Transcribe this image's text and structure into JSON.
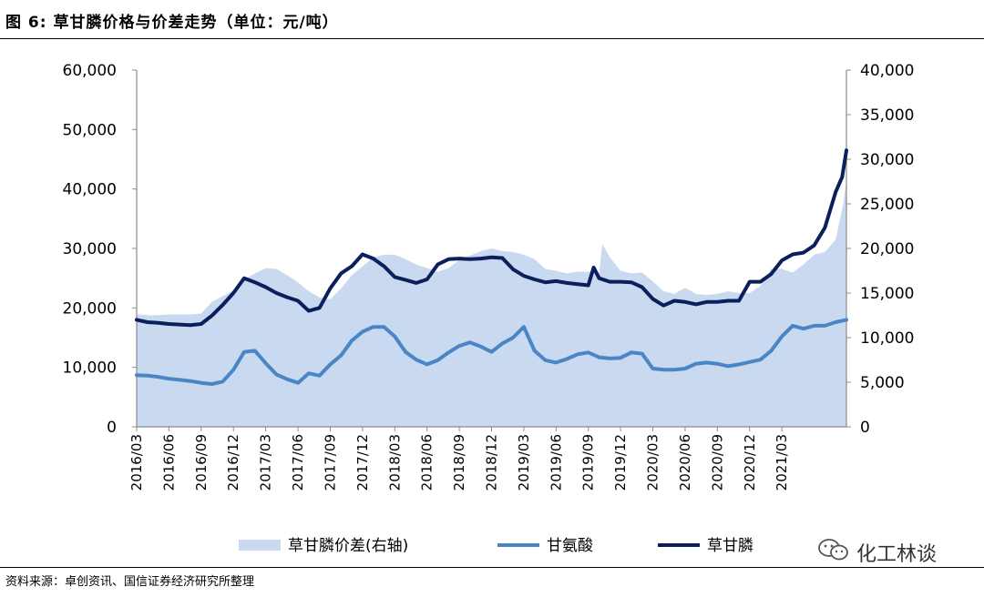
{
  "figure": {
    "title": "图 6:  草甘膦价格与价差走势（单位：元/吨）",
    "source": "资料来源：卓创资讯、国信证券经济研究所整理",
    "watermark": "化工林谈",
    "watermark_icon": "wechat-icon"
  },
  "colors": {
    "spread": "#c9d9f0",
    "glycine": "#4a86c6",
    "glyphosate": "#0a1f5c",
    "axis": "#8c8c8c"
  },
  "chart_data": {
    "type": "line",
    "title": "草甘膦价格与价差走势（单位：元/吨）",
    "xlabel": "",
    "ylabel": "",
    "ylim_left": [
      0,
      60000
    ],
    "ylim_right": [
      0,
      40000
    ],
    "left_ticks": [
      "0",
      "10,000",
      "20,000",
      "30,000",
      "40,000",
      "50,000",
      "60,000"
    ],
    "right_ticks": [
      "0",
      "5,000",
      "10,000",
      "15,000",
      "20,000",
      "25,000",
      "30,000",
      "35,000",
      "40,000"
    ],
    "x_ticks": [
      "2016/03",
      "2016/06",
      "2016/09",
      "2016/12",
      "2017/03",
      "2017/06",
      "2017/09",
      "2017/12",
      "2018/03",
      "2018/06",
      "2018/09",
      "2018/12",
      "2019/03",
      "2019/06",
      "2019/09",
      "2019/12",
      "2020/03",
      "2020/06",
      "2020/09",
      "2020/12",
      "2021/03"
    ],
    "x_range_months": [
      0,
      66
    ],
    "legend": [
      "草甘膦价差(右轴)",
      "甘氨酸",
      "草甘膦"
    ],
    "legend_position": "bottom",
    "series": [
      {
        "name": "草甘膦价差(右轴)",
        "axis": "right",
        "kind": "area",
        "points": [
          [
            0,
            12600
          ],
          [
            1.5,
            12500
          ],
          [
            3,
            12600
          ],
          [
            5,
            12600
          ],
          [
            6,
            12700
          ],
          [
            7,
            14000
          ],
          [
            9,
            15300
          ],
          [
            10,
            16500
          ],
          [
            11,
            17200
          ],
          [
            12,
            17800
          ],
          [
            13,
            17700
          ],
          [
            14,
            17000
          ],
          [
            15,
            16200
          ],
          [
            16,
            15200
          ],
          [
            17,
            14500
          ],
          [
            18,
            14300
          ],
          [
            19,
            15500
          ],
          [
            20,
            17000
          ],
          [
            21,
            18000
          ],
          [
            22,
            19000
          ],
          [
            23,
            19300
          ],
          [
            24,
            19300
          ],
          [
            25,
            18800
          ],
          [
            26,
            18200
          ],
          [
            27,
            17800
          ],
          [
            28,
            17400
          ],
          [
            29,
            17800
          ],
          [
            30,
            18700
          ],
          [
            31,
            19200
          ],
          [
            32,
            19700
          ],
          [
            33,
            20000
          ],
          [
            34,
            19700
          ],
          [
            35,
            19600
          ],
          [
            36,
            19300
          ],
          [
            37,
            18800
          ],
          [
            38,
            17700
          ],
          [
            39,
            17500
          ],
          [
            40,
            17200
          ],
          [
            41,
            17400
          ],
          [
            42,
            17400
          ],
          [
            43,
            17200
          ],
          [
            43.3,
            20500
          ],
          [
            44,
            19000
          ],
          [
            45,
            17500
          ],
          [
            46,
            17200
          ],
          [
            47,
            17300
          ],
          [
            48,
            16300
          ],
          [
            49,
            15200
          ],
          [
            50,
            14900
          ],
          [
            51,
            15600
          ],
          [
            52,
            14900
          ],
          [
            53,
            14800
          ],
          [
            54,
            14900
          ],
          [
            55,
            15200
          ],
          [
            56,
            15000
          ],
          [
            57,
            15000
          ],
          [
            58,
            15800
          ],
          [
            59,
            17700
          ],
          [
            60,
            17700
          ],
          [
            61,
            17300
          ],
          [
            62,
            18200
          ],
          [
            63,
            19300
          ],
          [
            64,
            19600
          ],
          [
            65,
            21000
          ],
          [
            65.7,
            25000
          ],
          [
            66,
            27600
          ]
        ]
      },
      {
        "name": "甘氨酸",
        "axis": "left",
        "kind": "line",
        "points": [
          [
            0,
            8700
          ],
          [
            1,
            8600
          ],
          [
            2,
            8400
          ],
          [
            3,
            8100
          ],
          [
            4,
            7900
          ],
          [
            5,
            7700
          ],
          [
            6,
            7400
          ],
          [
            7,
            7200
          ],
          [
            8,
            7600
          ],
          [
            9,
            9600
          ],
          [
            10,
            12600
          ],
          [
            11,
            12800
          ],
          [
            12,
            10700
          ],
          [
            13,
            8800
          ],
          [
            14,
            8000
          ],
          [
            15,
            7400
          ],
          [
            16,
            9000
          ],
          [
            17,
            8600
          ],
          [
            18,
            10500
          ],
          [
            19,
            12000
          ],
          [
            20,
            14500
          ],
          [
            21,
            16000
          ],
          [
            22,
            16800
          ],
          [
            23,
            16800
          ],
          [
            24,
            15200
          ],
          [
            25,
            12600
          ],
          [
            26,
            11300
          ],
          [
            27,
            10500
          ],
          [
            28,
            11200
          ],
          [
            29,
            12500
          ],
          [
            30,
            13600
          ],
          [
            31,
            14200
          ],
          [
            32,
            13500
          ],
          [
            33,
            12600
          ],
          [
            34,
            14000
          ],
          [
            35,
            15000
          ],
          [
            36,
            16800
          ],
          [
            37,
            12800
          ],
          [
            38,
            11200
          ],
          [
            39,
            10800
          ],
          [
            40,
            11400
          ],
          [
            41,
            12200
          ],
          [
            42,
            12500
          ],
          [
            43,
            11700
          ],
          [
            44,
            11500
          ],
          [
            45,
            11600
          ],
          [
            46,
            12500
          ],
          [
            47,
            12300
          ],
          [
            48,
            9800
          ],
          [
            49,
            9600
          ],
          [
            50,
            9600
          ],
          [
            51,
            9800
          ],
          [
            52,
            10600
          ],
          [
            53,
            10800
          ],
          [
            54,
            10600
          ],
          [
            55,
            10200
          ],
          [
            56,
            10500
          ],
          [
            57,
            10900
          ],
          [
            58,
            11300
          ],
          [
            59,
            12800
          ],
          [
            60,
            15200
          ],
          [
            61,
            17000
          ],
          [
            62,
            16500
          ],
          [
            63,
            17000
          ],
          [
            64,
            17000
          ],
          [
            65,
            17600
          ],
          [
            66,
            18000
          ]
        ]
      },
      {
        "name": "草甘膦",
        "axis": "left",
        "kind": "line",
        "points": [
          [
            0,
            18000
          ],
          [
            1,
            17600
          ],
          [
            2,
            17500
          ],
          [
            3,
            17300
          ],
          [
            4,
            17200
          ],
          [
            5,
            17100
          ],
          [
            6,
            17300
          ],
          [
            7,
            18700
          ],
          [
            8,
            20500
          ],
          [
            9,
            22500
          ],
          [
            10,
            25000
          ],
          [
            11,
            24300
          ],
          [
            12,
            23500
          ],
          [
            13,
            22500
          ],
          [
            14,
            21800
          ],
          [
            15,
            21200
          ],
          [
            16,
            19500
          ],
          [
            17,
            20000
          ],
          [
            18,
            23300
          ],
          [
            19,
            25800
          ],
          [
            20,
            27000
          ],
          [
            21,
            29000
          ],
          [
            22,
            28300
          ],
          [
            23,
            27000
          ],
          [
            24,
            25200
          ],
          [
            25,
            24700
          ],
          [
            26,
            24200
          ],
          [
            27,
            24800
          ],
          [
            28,
            27300
          ],
          [
            29,
            28200
          ],
          [
            30,
            28300
          ],
          [
            31,
            28200
          ],
          [
            32,
            28300
          ],
          [
            33,
            28500
          ],
          [
            34,
            28400
          ],
          [
            35,
            26500
          ],
          [
            36,
            25400
          ],
          [
            37,
            24800
          ],
          [
            38,
            24300
          ],
          [
            39,
            24500
          ],
          [
            40,
            24200
          ],
          [
            41,
            24000
          ],
          [
            42,
            23800
          ],
          [
            42.5,
            26800
          ],
          [
            43,
            25000
          ],
          [
            44,
            24400
          ],
          [
            45,
            24400
          ],
          [
            46,
            24300
          ],
          [
            47,
            23500
          ],
          [
            48,
            21500
          ],
          [
            49,
            20400
          ],
          [
            50,
            21200
          ],
          [
            51,
            21000
          ],
          [
            52,
            20600
          ],
          [
            53,
            21000
          ],
          [
            54,
            21000
          ],
          [
            55,
            21200
          ],
          [
            56,
            21200
          ],
          [
            57,
            24400
          ],
          [
            58,
            24400
          ],
          [
            59,
            25700
          ],
          [
            60,
            28000
          ],
          [
            61,
            29000
          ],
          [
            62,
            29300
          ],
          [
            63,
            30500
          ],
          [
            64,
            33500
          ],
          [
            65,
            39500
          ],
          [
            65.6,
            42000
          ],
          [
            66,
            46500
          ]
        ]
      }
    ]
  }
}
